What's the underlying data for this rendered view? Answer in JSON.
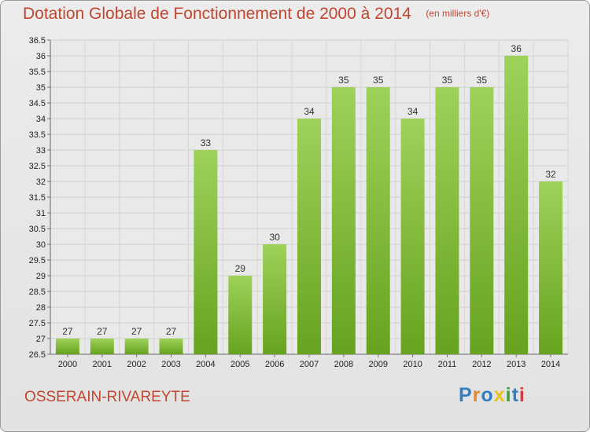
{
  "chart_data": {
    "type": "bar",
    "title": "Dotation Globale de Fonctionnement de 2000 à 2014",
    "unit_note": "(en milliers d'€)",
    "categories": [
      "2000",
      "2001",
      "2002",
      "2003",
      "2004",
      "2005",
      "2006",
      "2007",
      "2008",
      "2009",
      "2010",
      "2011",
      "2012",
      "2013",
      "2014"
    ],
    "values": [
      27,
      27,
      27,
      27,
      33,
      29,
      30,
      34,
      35,
      35,
      34,
      35,
      35,
      36,
      32
    ],
    "ylim": [
      26.5,
      36.5
    ],
    "yticks": [
      "26.5",
      "27",
      "27.5",
      "28",
      "28.5",
      "29",
      "29.5",
      "30",
      "30.5",
      "31",
      "31.5",
      "32",
      "32.5",
      "33",
      "33.5",
      "34",
      "34.5",
      "35",
      "35.5",
      "36",
      "36.5"
    ],
    "grid": true,
    "bar_color_top": "#9ed25a",
    "bar_color_bottom": "#67a31f"
  },
  "footer": {
    "commune": "OSSERAIN-RIVAREYTE",
    "logo_letters": [
      "P",
      "r",
      "o",
      "x",
      "i",
      "t",
      "i"
    ],
    "logo_colors": [
      "#2f7fc1",
      "#e8862a",
      "#2f7fc1",
      "#e8c21a",
      "#3aa13a",
      "#2f7fc1",
      "#d43d3d"
    ]
  }
}
